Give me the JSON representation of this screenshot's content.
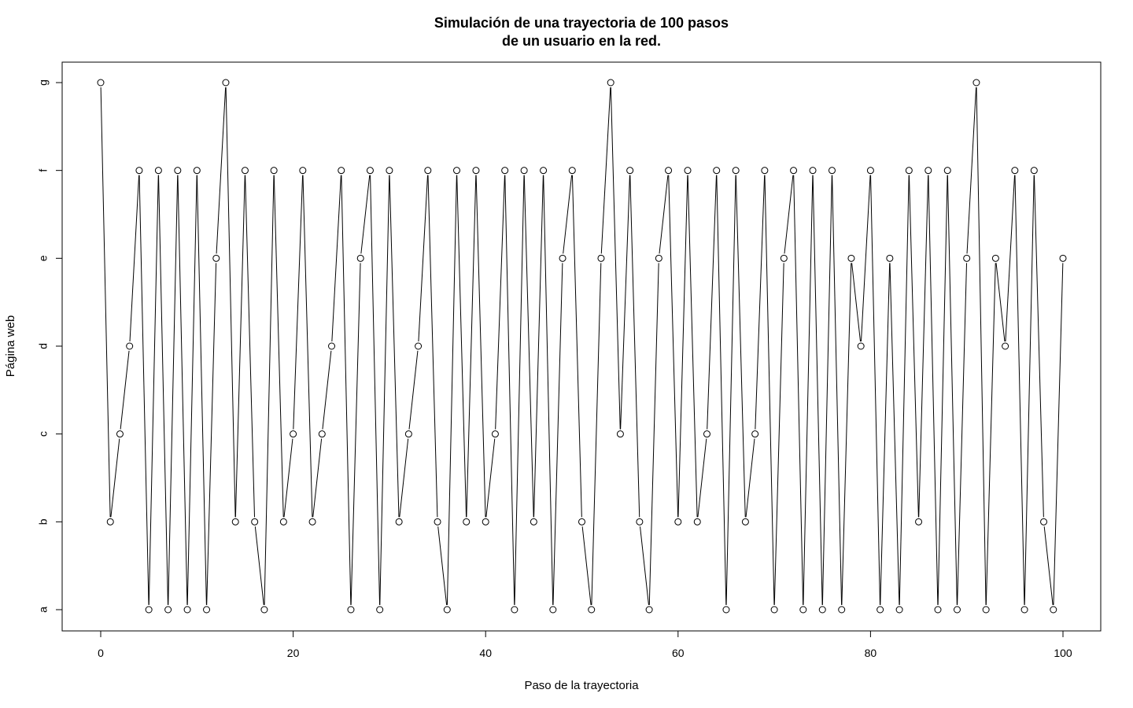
{
  "chart_data": {
    "type": "line",
    "title_line1": "Simulación de una trayectoria de 100 pasos",
    "title_line2": "de un usuario en la red.",
    "xlabel": "Paso de la trayectoria",
    "ylabel": "Página web",
    "xlim": [
      0,
      100
    ],
    "x_ticks": [
      0,
      20,
      40,
      60,
      80,
      100
    ],
    "y_categories": [
      "a",
      "b",
      "c",
      "d",
      "e",
      "f",
      "g"
    ],
    "markers": "open-circle",
    "line_color": "#000000",
    "grid": false,
    "legend": "none",
    "x": [
      0,
      1,
      2,
      3,
      4,
      5,
      6,
      7,
      8,
      9,
      10,
      11,
      12,
      13,
      14,
      15,
      16,
      17,
      18,
      19,
      20,
      21,
      22,
      23,
      24,
      25,
      26,
      27,
      28,
      29,
      30,
      31,
      32,
      33,
      34,
      35,
      36,
      37,
      38,
      39,
      40,
      41,
      42,
      43,
      44,
      45,
      46,
      47,
      48,
      49,
      50,
      51,
      52,
      53,
      54,
      55,
      56,
      57,
      58,
      59,
      60,
      61,
      62,
      63,
      64,
      65,
      66,
      67,
      68,
      69,
      70,
      71,
      72,
      73,
      74,
      75,
      76,
      77,
      78,
      79,
      80,
      81,
      82,
      83,
      84,
      85,
      86,
      87,
      88,
      89,
      90,
      91,
      92,
      93,
      94,
      95,
      96,
      97,
      98,
      99,
      100
    ],
    "values": [
      "g",
      "b",
      "c",
      "d",
      "f",
      "a",
      "f",
      "a",
      "f",
      "a",
      "f",
      "a",
      "e",
      "g",
      "b",
      "f",
      "b",
      "a",
      "f",
      "b",
      "c",
      "f",
      "b",
      "c",
      "d",
      "f",
      "a",
      "e",
      "f",
      "a",
      "f",
      "b",
      "c",
      "d",
      "f",
      "b",
      "a",
      "f",
      "b",
      "f",
      "b",
      "c",
      "f",
      "a",
      "f",
      "b",
      "f",
      "a",
      "e",
      "f",
      "b",
      "a",
      "e",
      "g",
      "c",
      "f",
      "b",
      "a",
      "e",
      "f",
      "b",
      "f",
      "b",
      "c",
      "f",
      "a",
      "f",
      "b",
      "c",
      "f",
      "a",
      "e",
      "f",
      "a",
      "f",
      "a",
      "f",
      "a",
      "e",
      "d",
      "f",
      "a",
      "e",
      "a",
      "f",
      "b",
      "f",
      "a",
      "f",
      "a",
      "e",
      "g",
      "a",
      "e",
      "d",
      "f",
      "a",
      "f",
      "b",
      "a",
      "e"
    ]
  }
}
